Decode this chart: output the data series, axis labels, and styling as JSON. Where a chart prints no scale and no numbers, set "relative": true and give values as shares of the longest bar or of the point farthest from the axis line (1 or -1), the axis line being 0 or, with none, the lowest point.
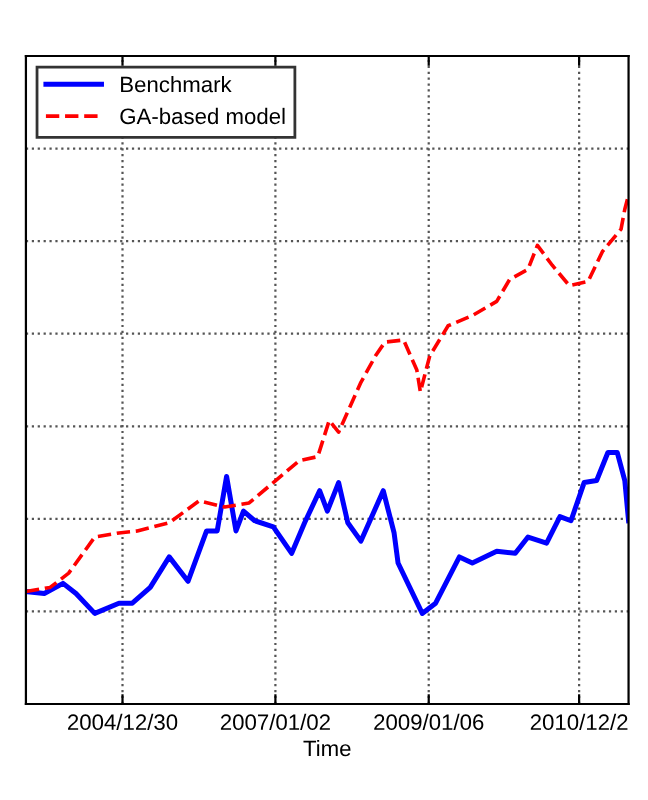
{
  "chart_data": {
    "type": "line",
    "xlabel": "Time",
    "relative": true,
    "grid": true,
    "legend": "top left",
    "xlim": [
      "2003-09-24",
      "2011-08-22"
    ],
    "xticks": [
      {
        "value": "2004-12-30",
        "label": "2004/12/30"
      },
      {
        "value": "2007-01-02",
        "label": "2007/01/02"
      },
      {
        "value": "2009-01-06",
        "label": "2009/01/06"
      },
      {
        "value": "2010-12-28",
        "label": "2010/12/2"
      }
    ],
    "series": [
      {
        "name": "Benchmark",
        "color": "#0000ff",
        "line_style": "solid",
        "x": [
          "2003-09-24",
          "2003-12-21",
          "2004-03-20",
          "2004-05-21",
          "2004-08-19",
          "2004-12-13",
          "2005-02-15",
          "2005-05-12",
          "2005-08-11",
          "2005-11-09",
          "2006-02-06",
          "2006-03-29",
          "2006-05-13",
          "2006-06-27",
          "2006-08-02",
          "2006-09-25",
          "2006-12-23",
          "2007-03-21",
          "2007-05-22",
          "2007-08-02",
          "2007-09-08",
          "2007-11-01",
          "2007-12-15",
          "2008-02-16",
          "2008-06-02",
          "2008-07-24",
          "2008-08-12",
          "2008-12-06",
          "2009-02-08",
          "2009-06-02",
          "2009-08-03",
          "2009-11-28",
          "2010-02-25",
          "2010-04-27",
          "2010-07-25",
          "2010-09-27",
          "2010-11-19",
          "2011-01-21",
          "2011-03-22",
          "2011-05-15",
          "2011-06-29",
          "2011-08-04",
          "2011-08-22"
        ],
        "values": [
          0.221,
          0.217,
          0.237,
          0.217,
          0.178,
          0.198,
          0.198,
          0.229,
          0.289,
          0.241,
          0.34,
          0.34,
          0.447,
          0.34,
          0.379,
          0.36,
          0.348,
          0.296,
          0.356,
          0.419,
          0.379,
          0.435,
          0.356,
          0.32,
          0.419,
          0.336,
          0.277,
          0.178,
          0.198,
          0.289,
          0.277,
          0.3,
          0.296,
          0.328,
          0.316,
          0.368,
          0.36,
          0.435,
          0.439,
          0.494,
          0.494,
          0.439,
          0.36
        ]
      },
      {
        "name": "GA-based model",
        "color": "#ff0000",
        "line_style": "dashed",
        "x": [
          "2003-09-24",
          "2004-01-18",
          "2004-04-16",
          "2004-08-19",
          "2004-12-13",
          "2005-03-11",
          "2005-08-11",
          "2006-01-01",
          "2006-05-04",
          "2006-08-29",
          "2006-12-23",
          "2007-04-26",
          "2007-07-24",
          "2007-09-17",
          "2007-11-01",
          "2008-02-16",
          "2008-04-26",
          "2008-06-10",
          "2008-09-08",
          "2008-11-10",
          "2008-11-27",
          "2009-01-11",
          "2009-04-09",
          "2009-08-03",
          "2009-11-28",
          "2010-01-29",
          "2010-04-27",
          "2010-06-11",
          "2010-08-21",
          "2010-11-11",
          "2011-02-09",
          "2011-04-19",
          "2011-07-17",
          "2011-08-04",
          "2011-08-22"
        ],
        "values": [
          0.221,
          0.229,
          0.257,
          0.328,
          0.336,
          0.34,
          0.356,
          0.399,
          0.387,
          0.395,
          0.435,
          0.478,
          0.486,
          0.557,
          0.534,
          0.632,
          0.684,
          0.711,
          0.715,
          0.656,
          0.613,
          0.684,
          0.743,
          0.763,
          0.791,
          0.834,
          0.854,
          0.901,
          0.862,
          0.822,
          0.83,
          0.889,
          0.933,
          0.972,
          1.0
        ]
      }
    ]
  }
}
